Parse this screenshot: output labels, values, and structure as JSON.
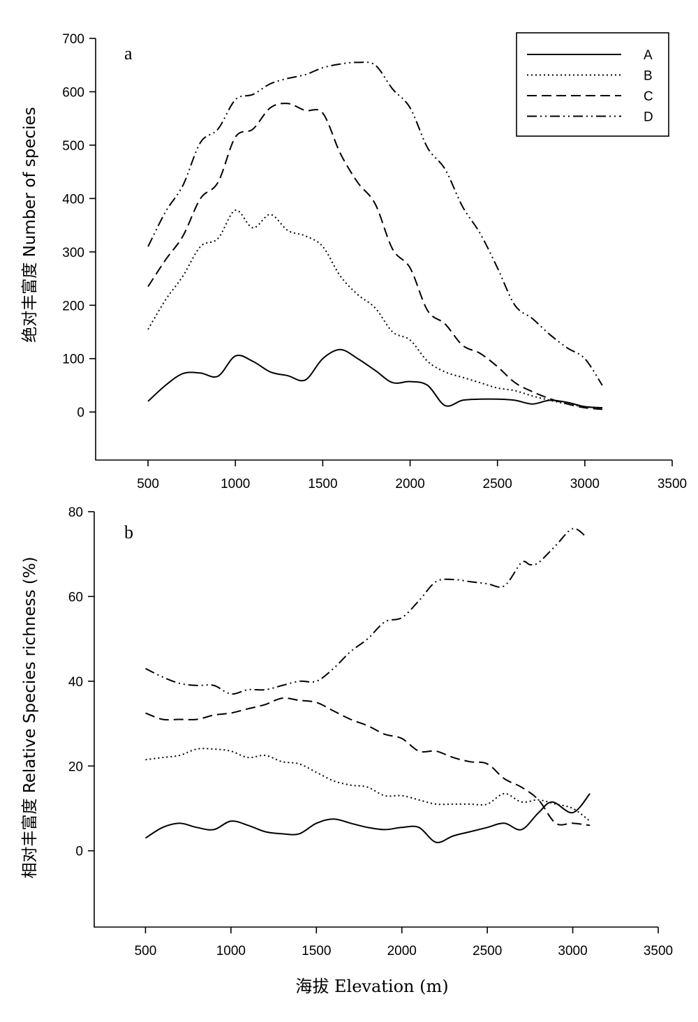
{
  "x_axis_label": "海拔 Elevation (m)",
  "legend": {
    "entries": [
      {
        "label": "A",
        "dash": "solid"
      },
      {
        "label": "B",
        "dash": "dotted"
      },
      {
        "label": "C",
        "dash": "dashed"
      },
      {
        "label": "D",
        "dash": "dash-dot-dot"
      }
    ]
  },
  "chart_data": [
    {
      "type": "line",
      "panel_label": "a",
      "ylabel": "绝对丰富度 Number of species",
      "xlim": [
        200,
        3500
      ],
      "ylim": [
        -90,
        700
      ],
      "x_ticks": [
        500,
        1000,
        1500,
        2000,
        2500,
        3000,
        3500
      ],
      "y_ticks": [
        0,
        100,
        200,
        300,
        400,
        500,
        600,
        700
      ],
      "grid": false,
      "legend_position": "top-right",
      "series": [
        {
          "name": "A",
          "dash": "solid",
          "x": [
            500,
            600,
            700,
            800,
            900,
            1000,
            1100,
            1200,
            1300,
            1400,
            1500,
            1600,
            1700,
            1800,
            1900,
            2000,
            2100,
            2200,
            2300,
            2400,
            2500,
            2600,
            2700,
            2800,
            2900,
            3000,
            3100
          ],
          "y": [
            20,
            50,
            72,
            73,
            67,
            105,
            95,
            75,
            68,
            60,
            100,
            117,
            100,
            78,
            55,
            57,
            50,
            12,
            22,
            24,
            24,
            22,
            15,
            22,
            18,
            10,
            8
          ]
        },
        {
          "name": "B",
          "dash": "dotted",
          "x": [
            500,
            600,
            700,
            800,
            900,
            1000,
            1100,
            1200,
            1300,
            1400,
            1500,
            1600,
            1700,
            1800,
            1900,
            2000,
            2100,
            2200,
            2300,
            2400,
            2500,
            2600,
            2700,
            2800,
            2900,
            3000,
            3100
          ],
          "y": [
            155,
            210,
            255,
            310,
            325,
            378,
            345,
            370,
            340,
            330,
            310,
            255,
            220,
            195,
            150,
            135,
            95,
            75,
            65,
            55,
            45,
            40,
            30,
            22,
            15,
            10,
            8
          ]
        },
        {
          "name": "C",
          "dash": "dashed",
          "x": [
            500,
            600,
            700,
            800,
            900,
            1000,
            1100,
            1200,
            1300,
            1400,
            1500,
            1600,
            1700,
            1800,
            1900,
            2000,
            2100,
            2200,
            2300,
            2400,
            2500,
            2600,
            2700,
            2800,
            2900,
            3000,
            3100
          ],
          "y": [
            235,
            285,
            330,
            400,
            430,
            515,
            530,
            570,
            578,
            565,
            560,
            485,
            430,
            390,
            305,
            270,
            190,
            165,
            125,
            110,
            85,
            55,
            38,
            25,
            15,
            8,
            5
          ]
        },
        {
          "name": "D",
          "dash": "dash-dot-dot",
          "x": [
            500,
            600,
            700,
            800,
            900,
            1000,
            1100,
            1200,
            1300,
            1400,
            1500,
            1600,
            1700,
            1800,
            1900,
            2000,
            2100,
            2200,
            2300,
            2400,
            2500,
            2600,
            2700,
            2800,
            2900,
            3000,
            3100
          ],
          "y": [
            310,
            375,
            425,
            505,
            530,
            585,
            595,
            615,
            625,
            632,
            645,
            652,
            655,
            650,
            605,
            570,
            495,
            455,
            385,
            335,
            270,
            200,
            175,
            145,
            120,
            100,
            50
          ]
        }
      ]
    },
    {
      "type": "line",
      "panel_label": "b",
      "ylabel": "相对丰富度 Relative Species richness (%)",
      "xlim": [
        200,
        3500
      ],
      "ylim": [
        -18,
        80
      ],
      "x_ticks": [
        500,
        1000,
        1500,
        2000,
        2500,
        3000,
        3500
      ],
      "y_ticks": [
        0,
        20,
        40,
        60,
        80
      ],
      "grid": false,
      "series": [
        {
          "name": "A",
          "dash": "solid",
          "x": [
            500,
            600,
            700,
            800,
            900,
            1000,
            1100,
            1200,
            1300,
            1400,
            1500,
            1600,
            1700,
            1800,
            1900,
            2000,
            2100,
            2200,
            2300,
            2400,
            2500,
            2600,
            2700,
            2800,
            2880,
            3000,
            3100
          ],
          "y": [
            3,
            5.5,
            6.5,
            5.5,
            5,
            7,
            6,
            4.5,
            4,
            4,
            6.5,
            7.5,
            6.5,
            5.5,
            5,
            5.5,
            5.5,
            2,
            3.5,
            4.5,
            5.5,
            6.5,
            5,
            9,
            11.5,
            9,
            13.5
          ]
        },
        {
          "name": "B",
          "dash": "dotted",
          "x": [
            500,
            600,
            700,
            800,
            900,
            1000,
            1100,
            1200,
            1300,
            1400,
            1500,
            1600,
            1700,
            1800,
            1900,
            2000,
            2100,
            2200,
            2300,
            2400,
            2500,
            2600,
            2700,
            2800,
            2900,
            3000,
            3100
          ],
          "y": [
            21.5,
            22,
            22.5,
            24,
            24,
            23.5,
            22,
            22.5,
            21,
            20.5,
            18.5,
            16.5,
            15.5,
            15,
            13,
            13,
            12,
            11,
            11,
            11,
            11,
            13.5,
            11.5,
            12,
            11,
            10,
            7
          ]
        },
        {
          "name": "C",
          "dash": "dashed",
          "x": [
            500,
            600,
            700,
            800,
            900,
            1000,
            1100,
            1200,
            1300,
            1400,
            1500,
            1600,
            1700,
            1800,
            1900,
            2000,
            2100,
            2200,
            2300,
            2400,
            2500,
            2600,
            2700,
            2800,
            2900,
            3000,
            3100
          ],
          "y": [
            32.5,
            31,
            31,
            31,
            32,
            32.5,
            33.5,
            34.5,
            36,
            35.5,
            35,
            33,
            31,
            29.5,
            27.5,
            26.5,
            23.5,
            23.5,
            22,
            21,
            20.5,
            17,
            15,
            12,
            6.5,
            6.5,
            6
          ]
        },
        {
          "name": "D",
          "dash": "dash-dot-dot",
          "x": [
            500,
            600,
            700,
            800,
            900,
            1000,
            1100,
            1200,
            1300,
            1400,
            1500,
            1600,
            1700,
            1800,
            1900,
            2000,
            2100,
            2200,
            2300,
            2400,
            2500,
            2600,
            2700,
            2750,
            2800,
            2900,
            3000,
            3080
          ],
          "y": [
            43,
            41,
            39.5,
            39,
            39,
            37,
            38,
            38,
            39,
            40,
            40,
            43,
            47,
            50,
            54,
            55,
            59,
            63.5,
            64,
            63.5,
            63,
            62.5,
            68,
            67.5,
            68,
            72,
            76,
            74
          ]
        }
      ]
    }
  ]
}
